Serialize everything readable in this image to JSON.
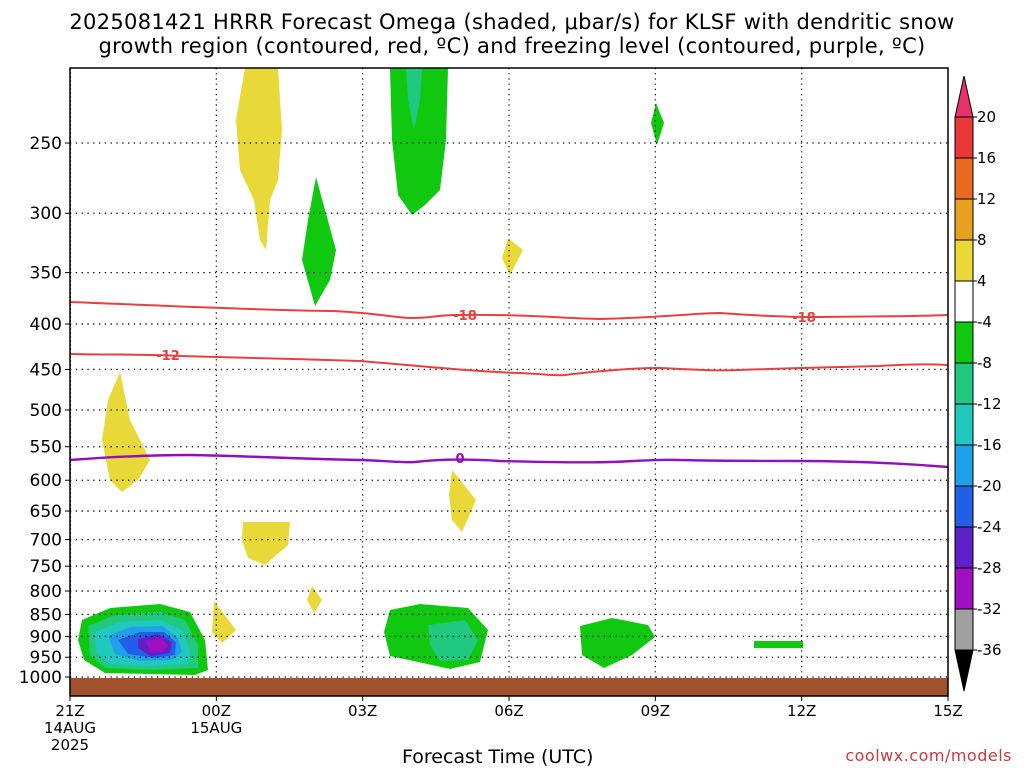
{
  "title_line1": "2025081421 HRRR Forecast Omega (shaded, μbar/s) for KLSF with dendritic snow",
  "title_line2": "growth region (contoured, red, ºC) and freezing level (contoured, purple, ºC)",
  "xlabel": "Forecast Time (UTC)",
  "credit": "coolwx.com/models",
  "chart_data": {
    "type": "time-height cross section",
    "x_ticks": [
      {
        "label": "21Z",
        "sub1": "14AUG",
        "sub2": "2025"
      },
      {
        "label": "00Z",
        "sub1": "15AUG",
        "sub2": ""
      },
      {
        "label": "03Z",
        "sub1": "",
        "sub2": ""
      },
      {
        "label": "06Z",
        "sub1": "",
        "sub2": ""
      },
      {
        "label": "09Z",
        "sub1": "",
        "sub2": ""
      },
      {
        "label": "12Z",
        "sub1": "",
        "sub2": ""
      },
      {
        "label": "15Z",
        "sub1": "",
        "sub2": ""
      }
    ],
    "x_hours": [
      21,
      24,
      27,
      30,
      33,
      36,
      39
    ],
    "y_levels_hPa": [
      250,
      300,
      350,
      400,
      450,
      500,
      550,
      600,
      650,
      700,
      750,
      800,
      850,
      900,
      950,
      1000
    ],
    "y_scale": "log-pressure",
    "grid": "dotted",
    "colorbar": {
      "labels": [
        "20",
        "16",
        "12",
        "8",
        "4",
        "-4",
        "-8",
        "-12",
        "-16",
        "-20",
        "-24",
        "-28",
        "-32",
        "-36"
      ],
      "colors": [
        "#e8306a",
        "#e83838",
        "#e86a20",
        "#e8a020",
        "#e8d838",
        "#ffffff",
        "#10c810",
        "#20c880",
        "#20c8c0",
        "#20a0e8",
        "#2060e8",
        "#6020c8",
        "#a010c0",
        "#a0a0a0",
        "#000000"
      ]
    },
    "contours": [
      {
        "name": "-18",
        "color": "#e84040"
      },
      {
        "name": "-12",
        "color": "#e84040"
      },
      {
        "name": "0",
        "color": "#9010c0"
      }
    ]
  }
}
